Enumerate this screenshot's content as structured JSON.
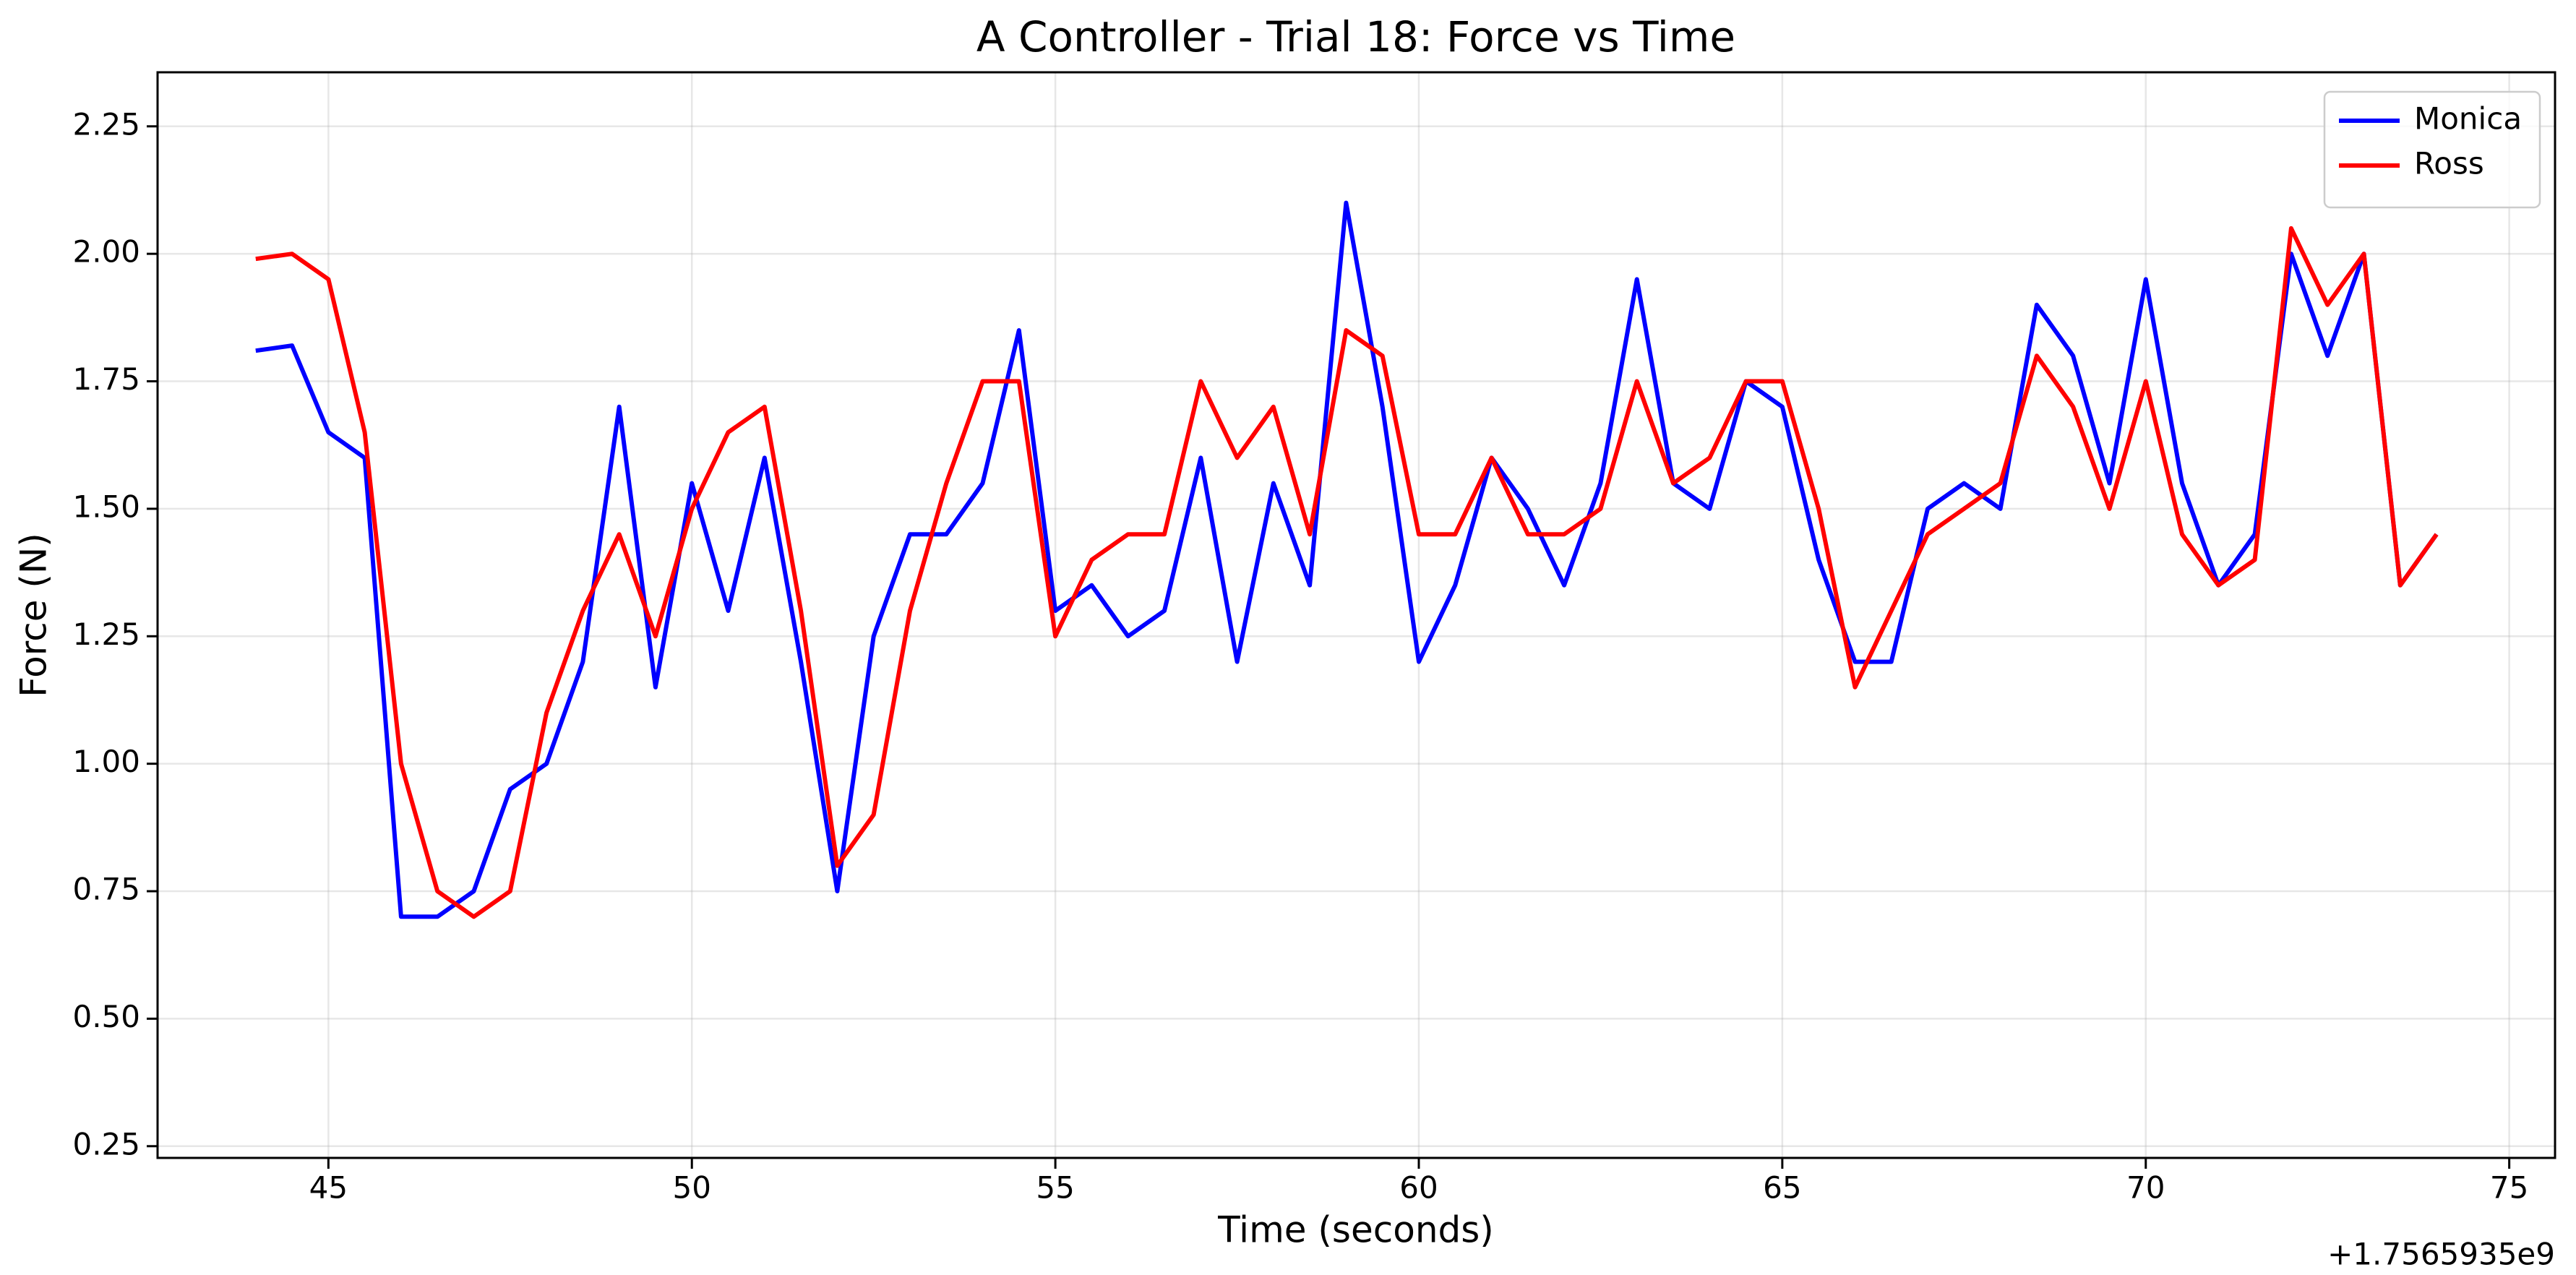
{
  "chart_data": {
    "type": "line",
    "title": "A Controller - Trial 18: Force vs Time",
    "x_label": "Time (seconds)",
    "y_label": "Force (N)",
    "x_offset_label": "+1.7565935e9",
    "x": [
      44.0,
      44.5,
      45.0,
      45.5,
      46.0,
      46.5,
      47.0,
      47.5,
      48.0,
      48.5,
      49.0,
      49.5,
      50.0,
      50.5,
      51.0,
      51.5,
      52.0,
      52.5,
      53.0,
      53.5,
      54.0,
      54.5,
      55.0,
      55.5,
      56.0,
      56.5,
      57.0,
      57.5,
      58.0,
      58.5,
      59.0,
      59.5,
      60.0,
      60.5,
      61.0,
      61.5,
      62.0,
      62.5,
      63.0,
      63.5,
      64.0,
      64.5,
      65.0,
      65.5,
      66.0,
      66.5,
      67.0,
      67.5,
      68.0,
      68.5,
      69.0,
      69.5,
      70.0,
      70.5,
      71.0,
      71.5,
      72.0,
      72.5,
      73.0,
      73.5,
      74.0
    ],
    "series": [
      {
        "name": "Monica",
        "color": "#0000ff",
        "values": [
          1.81,
          1.82,
          1.65,
          1.6,
          0.7,
          0.7,
          0.75,
          0.95,
          1.0,
          1.2,
          1.7,
          1.15,
          1.55,
          1.3,
          1.6,
          1.2,
          0.75,
          1.25,
          1.45,
          1.45,
          1.55,
          1.85,
          1.3,
          1.35,
          1.25,
          1.3,
          1.6,
          1.2,
          1.55,
          1.35,
          2.1,
          1.7,
          1.2,
          1.35,
          1.6,
          1.5,
          1.35,
          1.55,
          1.95,
          1.55,
          1.5,
          1.75,
          1.7,
          1.4,
          1.2,
          1.2,
          1.5,
          1.55,
          1.5,
          1.9,
          1.8,
          1.55,
          1.95,
          1.55,
          1.35,
          1.45,
          2.0,
          1.8,
          2.0,
          1.35,
          1.45
        ]
      },
      {
        "name": "Ross",
        "color": "#ff0000",
        "values": [
          1.99,
          2.0,
          1.95,
          1.65,
          1.0,
          0.75,
          0.7,
          0.75,
          1.1,
          1.3,
          1.45,
          1.25,
          1.5,
          1.65,
          1.7,
          1.3,
          0.8,
          0.9,
          1.3,
          1.55,
          1.75,
          1.75,
          1.25,
          1.4,
          1.45,
          1.45,
          1.75,
          1.6,
          1.7,
          1.45,
          1.85,
          1.8,
          1.45,
          1.45,
          1.6,
          1.45,
          1.45,
          1.5,
          1.75,
          1.55,
          1.6,
          1.75,
          1.75,
          1.5,
          1.15,
          1.3,
          1.45,
          1.5,
          1.55,
          1.8,
          1.7,
          1.5,
          1.75,
          1.45,
          1.35,
          1.4,
          2.05,
          1.9,
          2.0,
          1.35,
          1.45
        ]
      }
    ],
    "xlim": [
      42.65,
      75.63
    ],
    "ylim": [
      0.227,
      2.356
    ],
    "xticks": [
      45,
      50,
      55,
      60,
      65,
      70,
      75
    ],
    "yticks": [
      {
        "value": 0.25,
        "label": "0.25"
      },
      {
        "value": 0.5,
        "label": "0.50"
      },
      {
        "value": 0.75,
        "label": "0.75"
      },
      {
        "value": 1.0,
        "label": "1.00"
      },
      {
        "value": 1.25,
        "label": "1.25"
      },
      {
        "value": 1.5,
        "label": "1.50"
      },
      {
        "value": 1.75,
        "label": "1.75"
      },
      {
        "value": 2.0,
        "label": "2.00"
      },
      {
        "value": 2.25,
        "label": "2.25"
      }
    ],
    "grid": true,
    "legend": "upper right"
  }
}
